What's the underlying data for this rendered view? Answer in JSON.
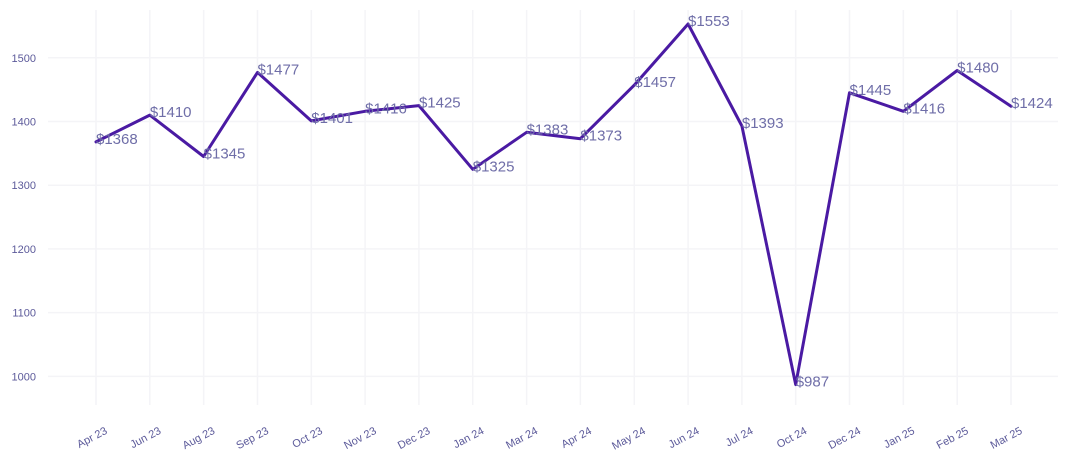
{
  "chart_data": {
    "type": "line",
    "title": "",
    "xlabel": "",
    "ylabel": "",
    "ylim": [
      955,
      1575
    ],
    "yticks": [
      1000,
      1100,
      1200,
      1300,
      1400,
      1500
    ],
    "ytick_labels": [
      "1000",
      "1100",
      "1200",
      "1300",
      "1400",
      "1500"
    ],
    "grid": true,
    "line_color": "#4a1aa3",
    "categories": [
      "Apr 23",
      "Jun 23",
      "Aug 23",
      "Sep 23",
      "Oct 23",
      "Nov 23",
      "Dec 23",
      "Jan 24",
      "Mar 24",
      "Apr 24",
      "May 24",
      "Jun 24",
      "Jul 24",
      "Oct 24",
      "Dec 24",
      "Jan 25",
      "Feb 25",
      "Mar 25"
    ],
    "values": [
      1368,
      1410,
      1345,
      1477,
      1401,
      1416,
      1425,
      1325,
      1383,
      1373,
      1457,
      1553,
      1393,
      987,
      1445,
      1416,
      1480,
      1424
    ],
    "data_labels": [
      "$1368",
      "$1410",
      "$1345",
      "$1477",
      "$1401",
      "$1416",
      "$1425",
      "$1325",
      "$1383",
      "$1373",
      "$1457",
      "$1553",
      "$1393",
      "$987",
      "$1445",
      "$1416",
      "$1480",
      "$1424"
    ]
  }
}
